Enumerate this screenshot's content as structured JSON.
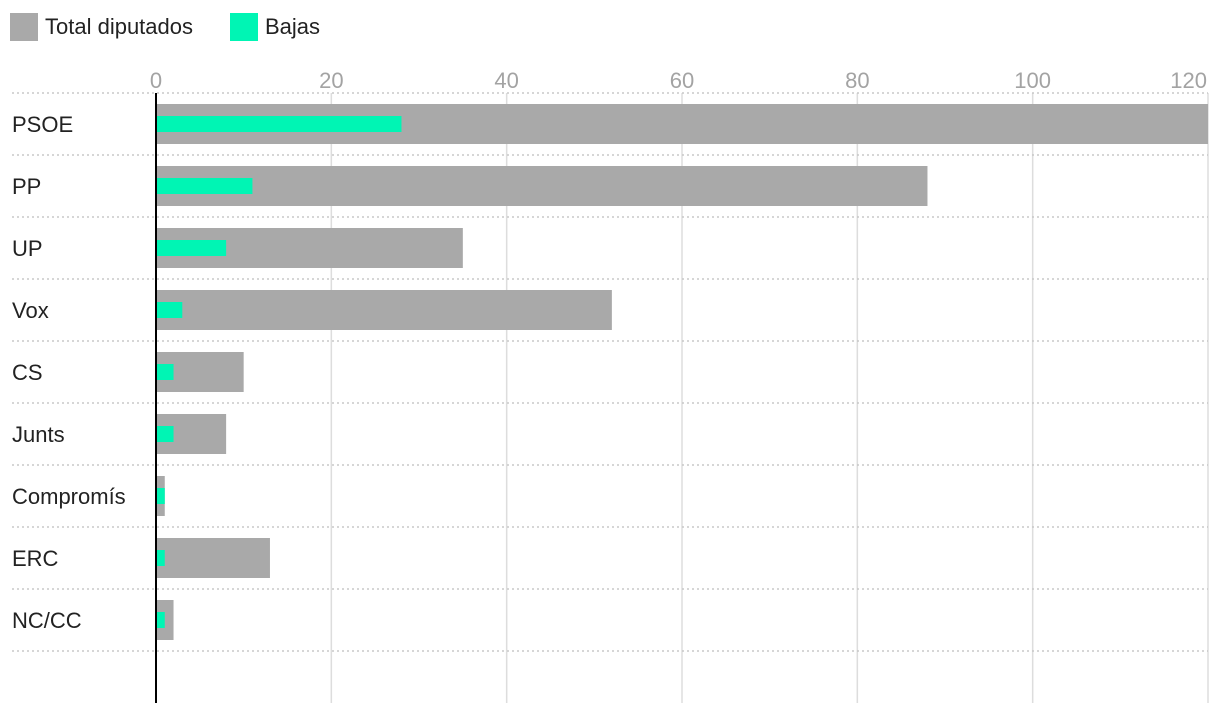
{
  "colors": {
    "total": "#a9a9a9",
    "bajas": "#00f5b4",
    "grid": "#dddddd",
    "row_divider": "#c8c8c8",
    "axis_line": "#000000",
    "tick_text": "#a3a3a3",
    "label_text": "#222222"
  },
  "chart_data": {
    "type": "bar",
    "orientation": "horizontal",
    "legend_position": "top-left",
    "grid": true,
    "xlim": [
      0,
      120
    ],
    "x_ticks": [
      0,
      20,
      40,
      60,
      80,
      100,
      120
    ],
    "x_tick_labels": [
      "0",
      "20",
      "40",
      "60",
      "80",
      "100",
      "120"
    ],
    "categories": [
      "PSOE",
      "PP",
      "UP",
      "Vox",
      "CS",
      "Junts",
      "Compromís",
      "ERC",
      "NC/CC"
    ],
    "series": [
      {
        "name": "Total diputados",
        "color_key": "total",
        "values": [
          120,
          88,
          35,
          52,
          10,
          8,
          1,
          13,
          2
        ]
      },
      {
        "name": "Bajas",
        "color_key": "bajas",
        "values": [
          28,
          11,
          8,
          3,
          2,
          2,
          1,
          1,
          1
        ]
      }
    ]
  }
}
